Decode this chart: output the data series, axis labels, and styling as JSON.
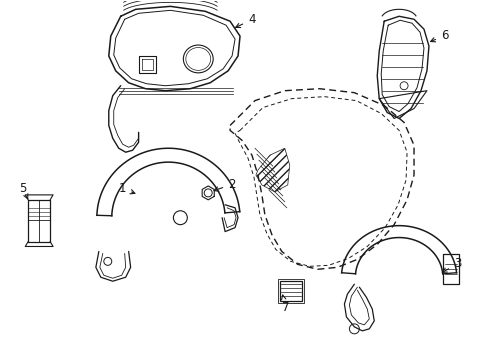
{
  "bg_color": "#ffffff",
  "line_color": "#1a1a1a",
  "label_color": "#000000",
  "figsize": [
    4.89,
    3.6
  ],
  "dpi": 100
}
